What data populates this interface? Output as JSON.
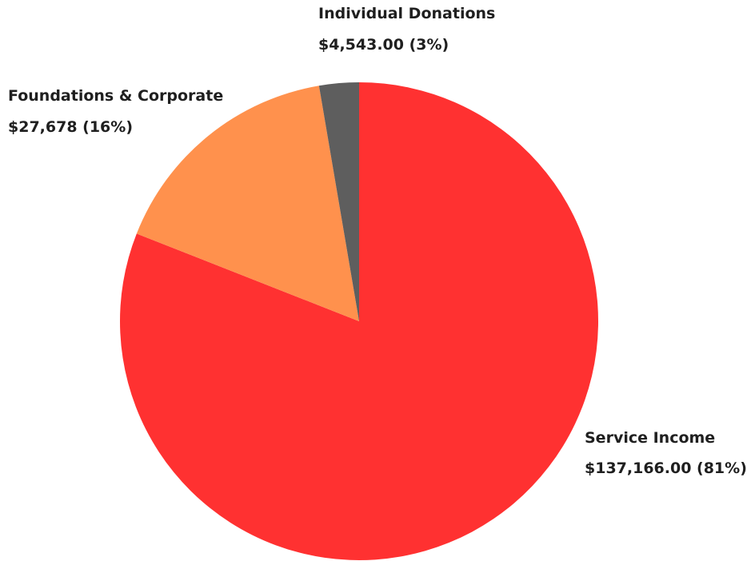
{
  "chart_data": {
    "type": "pie",
    "title": "",
    "slices": [
      {
        "name": "Service Income",
        "value": 137166.0,
        "value_label": "$137,166.00 (81%)",
        "percent": 81,
        "color": "#ff3131"
      },
      {
        "name": "Foundations & Corporate",
        "value": 27678,
        "value_label": "$27,678 (16%)",
        "percent": 16,
        "color": "#ff914d"
      },
      {
        "name": "Individual Donations",
        "value": 4543.0,
        "value_label": "$4,543.00 (3%)",
        "percent": 3,
        "color": "#5e5e5e"
      }
    ],
    "start_angle": "12 o'clock",
    "direction": "clockwise",
    "legend": "none"
  }
}
